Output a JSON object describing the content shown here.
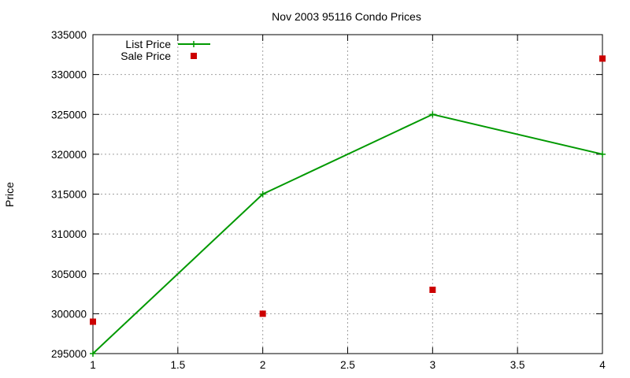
{
  "chart_data": {
    "type": "line",
    "title": "Nov 2003 95116 Condo Prices",
    "xlabel": "",
    "ylabel": "Price",
    "xlim": [
      1,
      4
    ],
    "ylim": [
      295000,
      335000
    ],
    "xticks": [
      1,
      1.5,
      2,
      2.5,
      3,
      3.5,
      4
    ],
    "xtick_labels": [
      "1",
      "1.5",
      "2",
      "2.5",
      "3",
      "3.5",
      "4"
    ],
    "yticks": [
      295000,
      300000,
      305000,
      310000,
      315000,
      320000,
      325000,
      330000,
      335000
    ],
    "ytick_labels": [
      "295000",
      "300000",
      "305000",
      "310000",
      "315000",
      "320000",
      "325000",
      "330000",
      "335000"
    ],
    "grid": true,
    "legend_position": "top-left",
    "series": [
      {
        "name": "List Price",
        "style": "line-with-plus-markers",
        "color": "#009900",
        "x": [
          1,
          2,
          3,
          4
        ],
        "y": [
          295000,
          315000,
          325000,
          320000
        ]
      },
      {
        "name": "Sale Price",
        "style": "square-markers",
        "color": "#cc0000",
        "x": [
          1,
          2,
          3,
          4
        ],
        "y": [
          299000,
          300000,
          303000,
          332000
        ]
      }
    ]
  }
}
